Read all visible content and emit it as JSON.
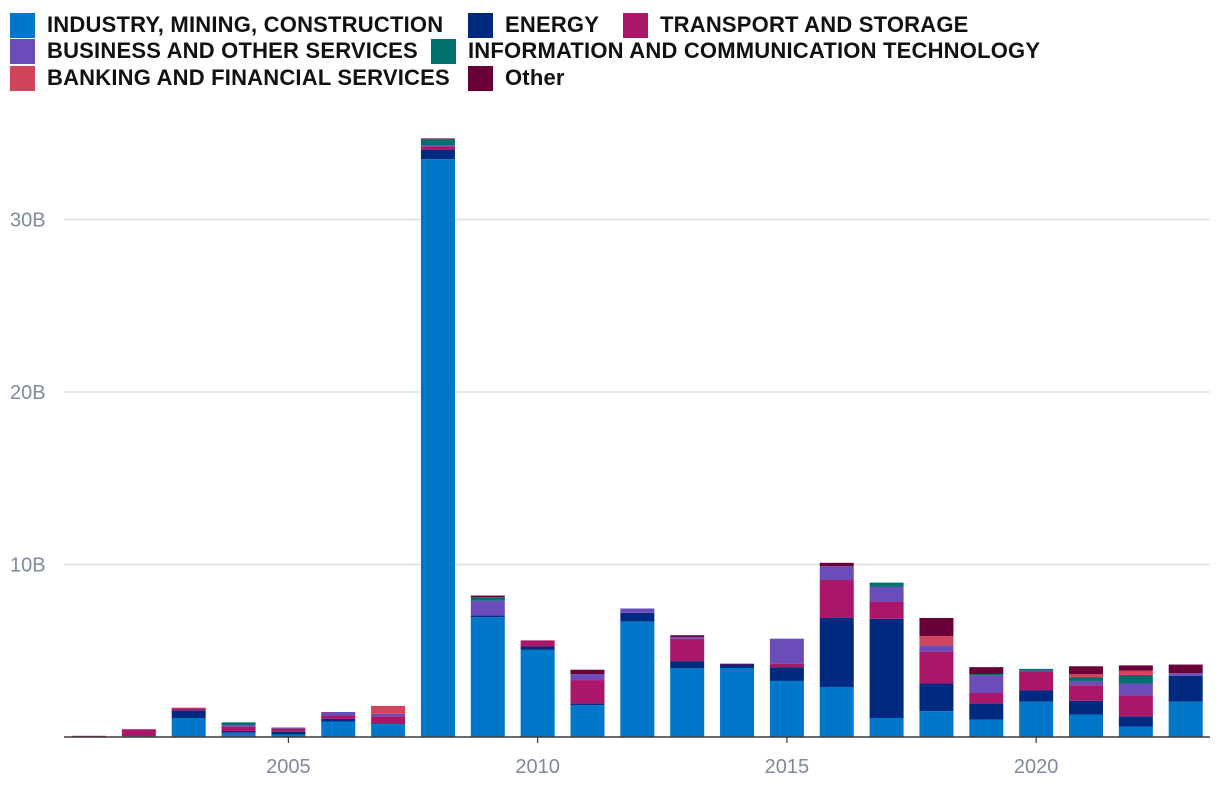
{
  "chart_data": {
    "type": "bar",
    "stacked": true,
    "x": [
      2001,
      2002,
      2003,
      2004,
      2005,
      2006,
      2007,
      2008,
      2009,
      2010,
      2011,
      2012,
      2013,
      2014,
      2015,
      2016,
      2017,
      2018,
      2019,
      2020,
      2021,
      2022,
      2023
    ],
    "x_ticks": [
      2005,
      2010,
      2015,
      2020
    ],
    "x_tick_labels": [
      "2005",
      "2010",
      "2015",
      "2020"
    ],
    "y_ticks": [
      10000000000,
      20000000000,
      30000000000
    ],
    "y_tick_labels": [
      "10B",
      "20B",
      "30B"
    ],
    "ylim": [
      0,
      35000000000
    ],
    "grid": true,
    "legend_position": "top",
    "series": [
      {
        "name": "INDUSTRY, MINING, CONSTRUCTION",
        "color": "#0077c8",
        "values": [
          0.03,
          0.05,
          1.1,
          0.25,
          0.15,
          0.9,
          0.75,
          33.5,
          6.95,
          5.05,
          1.85,
          6.7,
          4.0,
          4.0,
          3.25,
          2.9,
          1.1,
          1.5,
          1.0,
          2.05,
          1.3,
          0.6,
          2.05
        ]
      },
      {
        "name": "ENERGY",
        "color": "#002a80",
        "values": [
          0.02,
          0.0,
          0.45,
          0.1,
          0.15,
          0.15,
          0.0,
          0.55,
          0.1,
          0.2,
          0.1,
          0.5,
          0.4,
          0.2,
          0.8,
          4.0,
          5.75,
          1.6,
          0.95,
          0.65,
          0.8,
          0.6,
          1.5
        ]
      },
      {
        "name": "TRANSPORT AND STORAGE",
        "color": "#aa1668",
        "values": [
          0.02,
          0.4,
          0.1,
          0.25,
          0.2,
          0.2,
          0.45,
          0.2,
          0.0,
          0.35,
          1.35,
          0.0,
          1.3,
          0.0,
          0.2,
          2.2,
          1.0,
          1.85,
          0.6,
          1.1,
          0.9,
          1.2,
          0.0
        ]
      },
      {
        "name": "BUSINESS AND OTHER SERVICES",
        "color": "#6a4dbb",
        "values": [
          0.0,
          0.0,
          0.0,
          0.1,
          0.05,
          0.2,
          0.15,
          0.05,
          0.85,
          0.0,
          0.35,
          0.25,
          0.1,
          0.0,
          1.45,
          0.8,
          0.85,
          0.35,
          1.0,
          0.05,
          0.25,
          0.7,
          0.15
        ]
      },
      {
        "name": "INFORMATION AND COMMUNICATION TECHNOLOGY",
        "color": "#00706c",
        "values": [
          0.0,
          0.0,
          0.0,
          0.15,
          0.0,
          0.0,
          0.0,
          0.35,
          0.2,
          0.0,
          0.0,
          0.0,
          0.0,
          0.0,
          0.0,
          0.0,
          0.25,
          0.0,
          0.1,
          0.1,
          0.2,
          0.5,
          0.0
        ]
      },
      {
        "name": "BANKING AND FINANCIAL SERVICES",
        "color": "#d0445c",
        "values": [
          0.0,
          0.0,
          0.05,
          0.0,
          0.0,
          0.0,
          0.45,
          0.0,
          0.0,
          0.0,
          0.0,
          0.0,
          0.0,
          0.0,
          0.0,
          0.0,
          0.0,
          0.55,
          0.0,
          0.0,
          0.2,
          0.25,
          0.0
        ]
      },
      {
        "name": "Other",
        "color": "#6a0038",
        "values": [
          0.0,
          0.0,
          0.0,
          0.0,
          0.0,
          0.0,
          0.0,
          0.05,
          0.1,
          0.0,
          0.25,
          0.0,
          0.1,
          0.05,
          0.0,
          0.2,
          0.0,
          1.05,
          0.4,
          0.0,
          0.45,
          0.3,
          0.5
        ]
      }
    ],
    "value_unit_multiplier": 1000000000
  }
}
